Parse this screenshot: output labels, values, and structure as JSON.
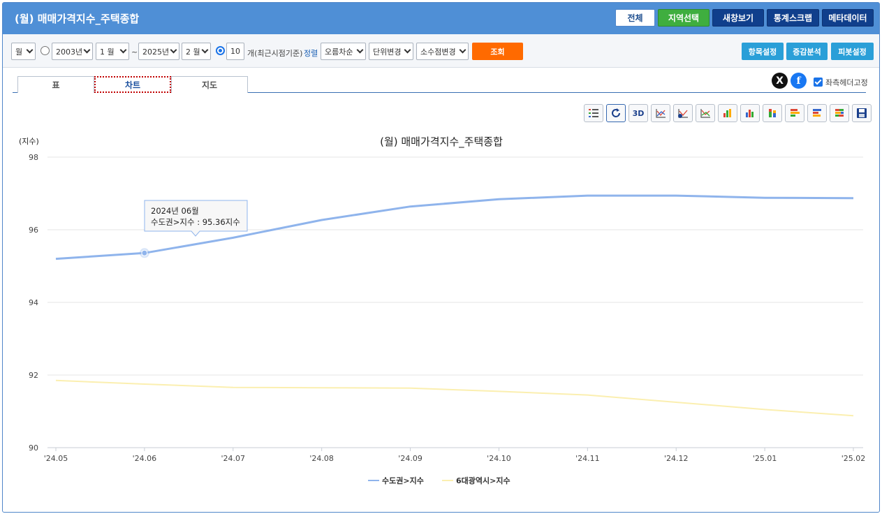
{
  "header": {
    "title": "(월) 매매가격지수_주택종합",
    "buttons": [
      "전체",
      "지역선택",
      "새창보기",
      "통계스크랩",
      "메타데이터"
    ]
  },
  "toolbar": {
    "period_unit": "월",
    "start_year": "2003년",
    "start_month": "1 월",
    "range_sep": "~",
    "end_year": "2025년",
    "end_month": "2 월",
    "recent_count": "10",
    "recent_label": "개(최근시점기준)",
    "sort_label": "정렬",
    "sort_value": "오름차순",
    "unit_change": "단위변경",
    "decimal_change": "소수점변경",
    "query_button": "조회",
    "item_settings": "항목설정",
    "change_analysis": "증감분석",
    "pivot_settings": "피봇설정"
  },
  "tabs": [
    {
      "label": "표",
      "active": false
    },
    {
      "label": "차트",
      "active": true
    },
    {
      "label": "지도",
      "active": false
    }
  ],
  "social": {
    "x_glyph": "X",
    "facebook_glyph": "f"
  },
  "fix_header_label": "좌측헤더고정",
  "fix_header_checked": true,
  "chart_tool_icons": [
    "list-icon",
    "refresh-icon",
    "3d-icon",
    "line-chart-icon",
    "line-chart-dollar-icon",
    "line-chart-alt-icon",
    "bar-chart-icon",
    "bar-chart-alt-icon",
    "stacked-bar-icon",
    "horizontal-bar-icon",
    "horizontal-bar-alt-icon",
    "horizontal-stacked-icon",
    "save-icon"
  ],
  "chart_tool_3d_label": "3D",
  "chart_data": {
    "type": "line",
    "title": "(월) 매매가격지수_주택종합",
    "ylabel": "(지수)",
    "categories": [
      "'24.05",
      "'24.06",
      "'24.07",
      "'24.08",
      "'24.09",
      "'24.10",
      "'24.11",
      "'24.12",
      "'25.01",
      "'25.02"
    ],
    "ylim": [
      90,
      98
    ],
    "yticks": [
      90,
      92,
      94,
      96,
      98
    ],
    "grid": true,
    "legend_position": "bottom",
    "series": [
      {
        "name": "수도권>지수",
        "color": "#8fb4ec",
        "values": [
          95.2,
          95.36,
          95.78,
          96.27,
          96.64,
          96.84,
          96.94,
          96.94,
          96.88,
          96.87
        ]
      },
      {
        "name": "6대광역시>지수",
        "color": "#fbefb0",
        "values": [
          91.85,
          91.75,
          91.66,
          91.65,
          91.64,
          91.55,
          91.45,
          91.25,
          91.05,
          90.88
        ]
      }
    ],
    "tooltip": {
      "title": "2024년 06월",
      "label": "수도권>지수 : 95.36지수",
      "series_index": 0,
      "point_index": 1
    }
  }
}
